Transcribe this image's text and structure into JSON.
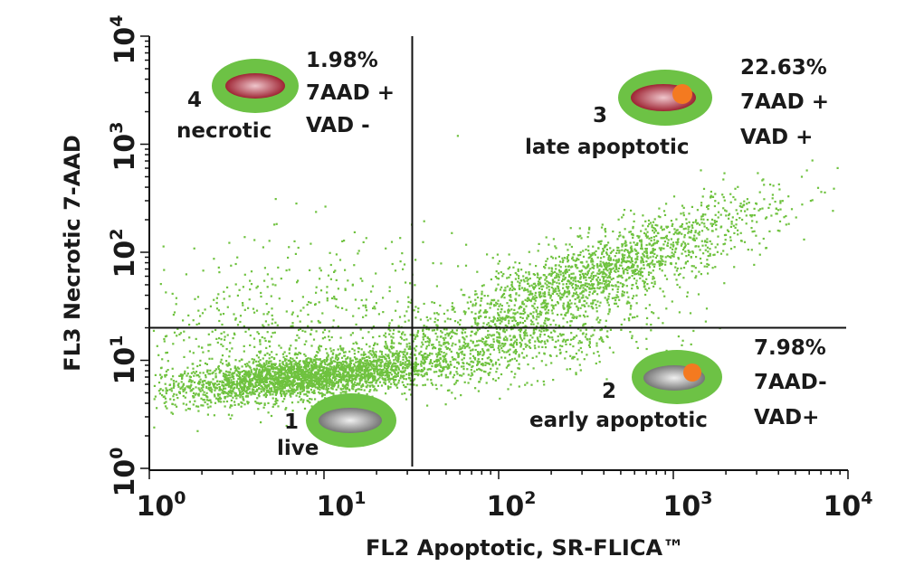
{
  "chart_data": {
    "type": "scatter",
    "title": "",
    "xlabel": "FL2 Apoptotic, SR-FLICA™",
    "ylabel": "FL3 Necrotic 7-AAD",
    "x_scale": "log",
    "y_scale": "log",
    "xlim": [
      1,
      10000
    ],
    "ylim": [
      1,
      10000
    ],
    "x_ticks": [
      {
        "base": "10",
        "exp": "0"
      },
      {
        "base": "10",
        "exp": "1"
      },
      {
        "base": "10",
        "exp": "2"
      },
      {
        "base": "10",
        "exp": "3"
      },
      {
        "base": "10",
        "exp": "4"
      }
    ],
    "y_ticks": [
      {
        "base": "10",
        "exp": "0"
      },
      {
        "base": "10",
        "exp": "1"
      },
      {
        "base": "10",
        "exp": "2"
      },
      {
        "base": "10",
        "exp": "3"
      },
      {
        "base": "10",
        "exp": "4"
      }
    ],
    "gates": {
      "x": 32,
      "y": 20
    },
    "grid": false,
    "point_color": "#6fc23f",
    "quadrants": [
      {
        "number": "4",
        "name": "necrotic",
        "percent": "1.98%",
        "lines": [
          "7AAD +",
          "VAD -"
        ],
        "cell": "necrotic-cell-icon"
      },
      {
        "number": "3",
        "name": "late apoptotic",
        "percent": "22.63%",
        "lines": [
          "7AAD +",
          "VAD +"
        ],
        "cell": "late-apoptotic-cell-icon"
      },
      {
        "number": "2",
        "name": "early apoptotic",
        "percent": "7.98%",
        "lines": [
          "7AAD-",
          "VAD+"
        ],
        "cell": "early-apoptotic-cell-icon"
      },
      {
        "number": "1",
        "name": "live",
        "percent": "",
        "lines": [],
        "cell": "live-cell-icon"
      }
    ],
    "populations": [
      {
        "name": "live",
        "n": 2600,
        "x_log_mean": 0.85,
        "x_log_sd": 0.38,
        "y_log_mean": 0.85,
        "y_log_sd": 0.11,
        "corr": 0.5
      },
      {
        "name": "live-tail",
        "n": 500,
        "x_log_mean": 0.7,
        "x_log_sd": 0.6,
        "y_log_mean": 1.15,
        "y_log_sd": 0.3,
        "corr": 0.2
      },
      {
        "name": "early-apoptotic",
        "n": 800,
        "x_log_mean": 1.9,
        "x_log_sd": 0.5,
        "y_log_mean": 1.1,
        "y_log_sd": 0.2,
        "corr": 0.6
      },
      {
        "name": "late-apoptotic",
        "n": 1900,
        "x_log_mean": 2.55,
        "x_log_sd": 0.5,
        "y_log_mean": 1.8,
        "y_log_sd": 0.35,
        "corr": 0.85
      },
      {
        "name": "necrotic",
        "n": 150,
        "x_log_mean": 0.9,
        "x_log_sd": 0.45,
        "y_log_mean": 1.75,
        "y_log_sd": 0.3,
        "corr": 0.1
      }
    ]
  },
  "colors": {
    "halo": "#6dc245",
    "necrotic_core": "#9e2433",
    "necrotic_shine": "#efc6cc",
    "live_core": "#767676",
    "live_shine": "#f0f0f0",
    "apoptotic_dot": "#f47a20",
    "axis": "#111111"
  }
}
